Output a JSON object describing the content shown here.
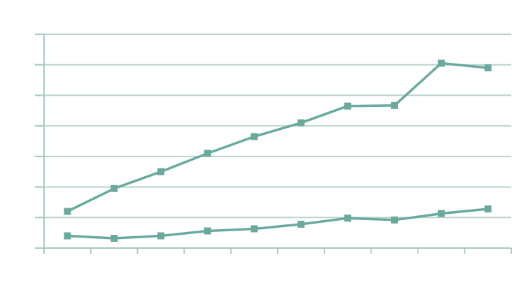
{
  "chart_data": {
    "type": "line",
    "x": [
      1,
      2,
      3,
      4,
      5,
      6,
      7,
      8,
      9,
      10
    ],
    "ylim": [
      0,
      7
    ],
    "grid": true,
    "series": [
      {
        "values": [
          1.2,
          1.95,
          2.5,
          3.1,
          3.65,
          4.1,
          4.65,
          4.67,
          6.05,
          5.9
        ]
      },
      {
        "values": [
          0.4,
          0.32,
          0.4,
          0.56,
          0.63,
          0.78,
          0.98,
          0.92,
          1.13,
          1.28
        ]
      }
    ]
  },
  "colors": {
    "series": "#6aaa9e",
    "grid": "#b8d3cc",
    "axis": "#a9c9c1"
  }
}
